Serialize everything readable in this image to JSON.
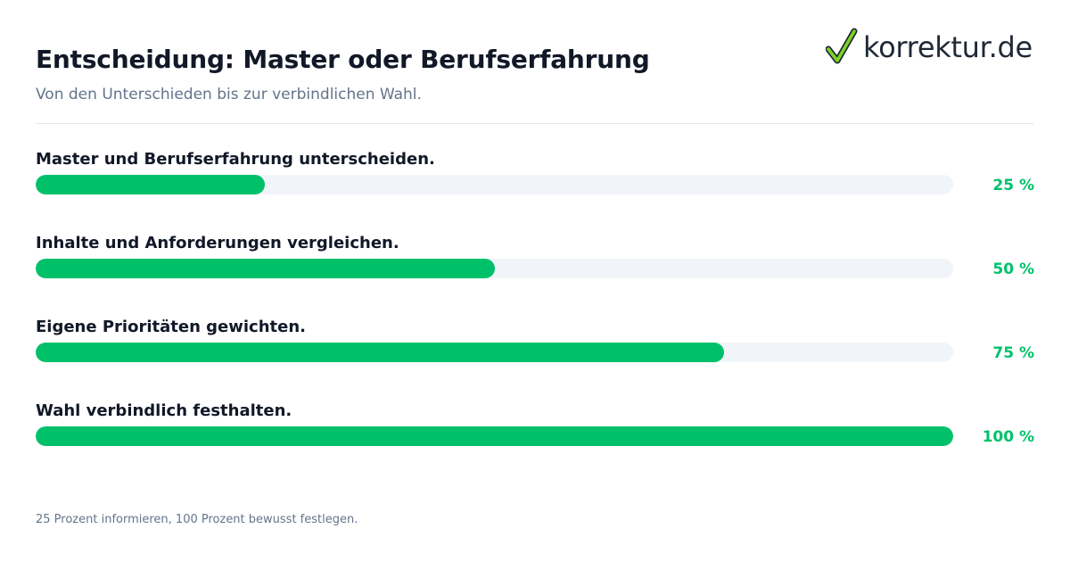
{
  "header": {
    "title": "Entscheidung: Master oder Berufserfahrung",
    "subtitle": "Von den Unterschieden bis zur verbindlichen Wahl."
  },
  "logo": {
    "icon": "checkmark-icon",
    "text": "korrektur.de",
    "check_color": "#7ed321"
  },
  "colors": {
    "accent": "#00c16a",
    "track": "#f1f5f9"
  },
  "steps": [
    {
      "label": "Master und Berufserfahrung unterscheiden.",
      "progress": 0.25,
      "percent_label": "25 %"
    },
    {
      "label": "Inhalte und Anforderungen vergleichen.",
      "progress": 0.5,
      "percent_label": "50 %"
    },
    {
      "label": "Eigene Prioritäten gewichten.",
      "progress": 0.75,
      "percent_label": "75 %"
    },
    {
      "label": "Wahl verbindlich festhalten.",
      "progress": 1.0,
      "percent_label": "100 %"
    }
  ],
  "footnote": "25 Prozent informieren, 100 Prozent bewusst festlegen."
}
